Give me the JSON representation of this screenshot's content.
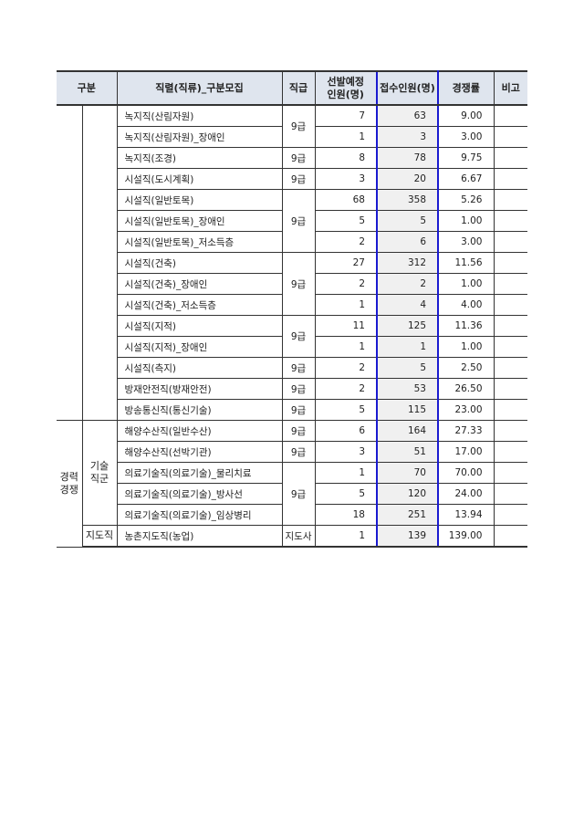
{
  "header": {
    "category": "구분",
    "series": "직렬(직류)_구분모집",
    "grade": "직급",
    "planned": "선발예정\n인원(명)",
    "applied": "접수인원(명)",
    "rate": "경쟁률",
    "note": "비고"
  },
  "groups": {
    "career": "경력\n경쟁",
    "tech": "기술\n직군",
    "guidance": "지도직"
  },
  "colors": {
    "header_bg": "#dfe5ee",
    "applied_highlight": "#1a1ad0",
    "applied_bg": "#f0f0f0"
  },
  "rows": [
    {
      "name": "녹지직(산림자원)",
      "grade": "9급",
      "planned": "7",
      "applied": "63",
      "rate": "9.00"
    },
    {
      "name": "녹지직(산림자원)_장애인",
      "planned": "1",
      "applied": "3",
      "rate": "3.00"
    },
    {
      "name": "녹지직(조경)",
      "grade": "9급",
      "planned": "8",
      "applied": "78",
      "rate": "9.75"
    },
    {
      "name": "시설직(도시계획)",
      "grade": "9급",
      "planned": "3",
      "applied": "20",
      "rate": "6.67"
    },
    {
      "name": "시설직(일반토목)",
      "grade": "9급",
      "planned": "68",
      "applied": "358",
      "rate": "5.26"
    },
    {
      "name": "시설직(일반토목)_장애인",
      "planned": "5",
      "applied": "5",
      "rate": "1.00"
    },
    {
      "name": "시설직(일반토목)_저소득층",
      "planned": "2",
      "applied": "6",
      "rate": "3.00"
    },
    {
      "name": "시설직(건축)",
      "grade": "9급",
      "planned": "27",
      "applied": "312",
      "rate": "11.56"
    },
    {
      "name": "시설직(건축)_장애인",
      "planned": "2",
      "applied": "2",
      "rate": "1.00"
    },
    {
      "name": "시설직(건축)_저소득층",
      "planned": "1",
      "applied": "4",
      "rate": "4.00"
    },
    {
      "name": "시설직(지적)",
      "grade": "9급",
      "planned": "11",
      "applied": "125",
      "rate": "11.36"
    },
    {
      "name": "시설직(지적)_장애인",
      "planned": "1",
      "applied": "1",
      "rate": "1.00"
    },
    {
      "name": "시설직(측지)",
      "grade": "9급",
      "planned": "2",
      "applied": "5",
      "rate": "2.50"
    },
    {
      "name": "방재안전직(방재안전)",
      "grade": "9급",
      "planned": "2",
      "applied": "53",
      "rate": "26.50"
    },
    {
      "name": "방송통신직(통신기술)",
      "grade": "9급",
      "planned": "5",
      "applied": "115",
      "rate": "23.00"
    },
    {
      "name": "해양수산직(일반수산)",
      "grade": "9급",
      "planned": "6",
      "applied": "164",
      "rate": "27.33"
    },
    {
      "name": "해양수산직(선박기관)",
      "grade": "9급",
      "planned": "3",
      "applied": "51",
      "rate": "17.00"
    },
    {
      "name": "의료기술직(의료기술)_물리치료",
      "grade": "9급",
      "planned": "1",
      "applied": "70",
      "rate": "70.00"
    },
    {
      "name": "의료기술직(의료기술)_방사선",
      "planned": "5",
      "applied": "120",
      "rate": "24.00"
    },
    {
      "name": "의료기술직(의료기술)_임상병리",
      "planned": "18",
      "applied": "251",
      "rate": "13.94"
    },
    {
      "name": "농촌지도직(농업)",
      "grade": "지도사",
      "planned": "1",
      "applied": "139",
      "rate": "139.00"
    }
  ]
}
